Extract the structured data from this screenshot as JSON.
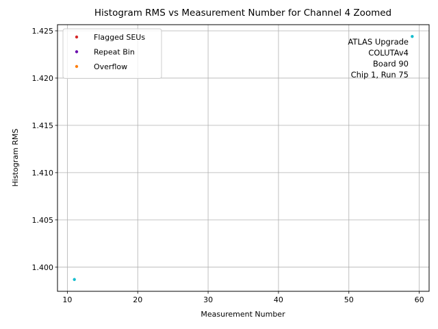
{
  "chart_data": {
    "type": "scatter",
    "title": "Histogram RMS vs Measurement Number for Channel 4 Zoomed",
    "xlabel": "Measurement Number",
    "ylabel": "Histogram RMS",
    "xlim": [
      8.6,
      61.4
    ],
    "ylim": [
      1.39745,
      1.42565
    ],
    "xticks": [
      10,
      20,
      30,
      40,
      50,
      60
    ],
    "xtick_labels": [
      "10",
      "20",
      "30",
      "40",
      "50",
      "60"
    ],
    "yticks": [
      1.4,
      1.405,
      1.41,
      1.415,
      1.42,
      1.425
    ],
    "ytick_labels": [
      "1.400",
      "1.405",
      "1.410",
      "1.415",
      "1.420",
      "1.425"
    ],
    "grid": true,
    "legend_position": "top-left",
    "series": [
      {
        "name": "Flagged SEUs",
        "color": "#d62728",
        "x": [],
        "y": []
      },
      {
        "name": "Repeat Bin",
        "color": "#6a0dad",
        "x": [],
        "y": []
      },
      {
        "name": "Overflow",
        "color": "#ff7f0e",
        "x": [],
        "y": []
      },
      {
        "color": "#17becf",
        "x": [
          11,
          59
        ],
        "y": [
          1.3987,
          1.4244
        ]
      }
    ],
    "annotation": [
      "ATLAS Upgrade",
      "COLUTAv4",
      "Board 90",
      "Chip 1, Run 75"
    ]
  }
}
